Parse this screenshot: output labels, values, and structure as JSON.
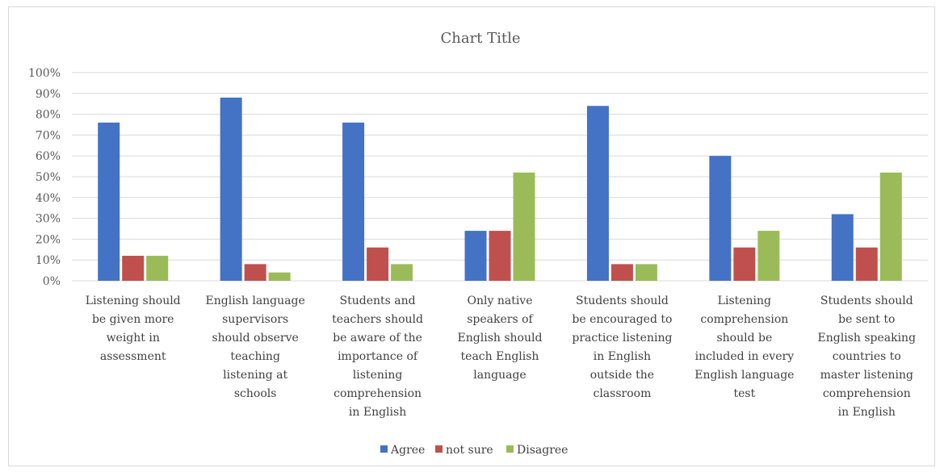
{
  "chart_data": {
    "type": "bar",
    "title": "Chart Title",
    "xlabel": "",
    "ylabel": "",
    "ylim": [
      0,
      100
    ],
    "y_ticks": [
      "0%",
      "10%",
      "20%",
      "30%",
      "40%",
      "50%",
      "60%",
      "70%",
      "80%",
      "90%",
      "100%"
    ],
    "categories": [
      "Listening should be given more weight in assessment",
      "English language supervisors should observe teaching listening at schools",
      "Students and teachers should be aware of the importance of listening comprehension in English",
      "Only native speakers of English should teach English language",
      "Students should be encouraged to practice listening in English outside the classroom",
      "Listening comprehension should be included in every English language test",
      "Students should be sent to English speaking countries to master listening comprehension in English"
    ],
    "category_lines": [
      [
        "Listening should",
        "be given more",
        "weight in",
        "assessment"
      ],
      [
        "English language",
        "supervisors",
        "should observe",
        "teaching",
        "listening at",
        "schools"
      ],
      [
        "Students and",
        "teachers should",
        "be aware of the",
        "importance of",
        "listening",
        "comprehension",
        "in English"
      ],
      [
        "Only native",
        "speakers of",
        "English should",
        "teach English",
        "language"
      ],
      [
        "Students should",
        "be encouraged to",
        "practice listening",
        "in English",
        "outside the",
        "classroom"
      ],
      [
        "Listening",
        "comprehension",
        "should be",
        "included in every",
        "English language",
        "test"
      ],
      [
        "Students should",
        "be sent to",
        "English speaking",
        "countries to",
        "master listening",
        "comprehension",
        "in English"
      ]
    ],
    "series": [
      {
        "name": "Agree",
        "color": "#4472c4",
        "values": [
          76,
          88,
          76,
          24,
          84,
          60,
          32
        ]
      },
      {
        "name": "not sure",
        "color": "#c0504d",
        "values": [
          12,
          8,
          16,
          24,
          8,
          16,
          16
        ]
      },
      {
        "name": "Disagree",
        "color": "#9bbb59",
        "values": [
          12,
          4,
          8,
          52,
          8,
          24,
          52
        ]
      }
    ],
    "grid": true,
    "legend_position": "bottom"
  }
}
